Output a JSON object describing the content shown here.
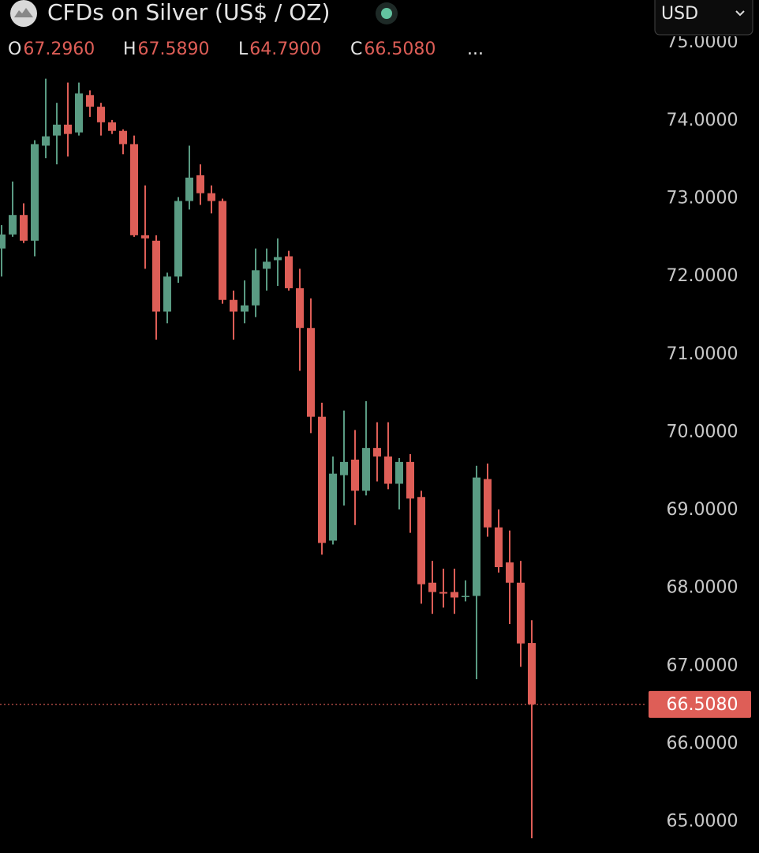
{
  "chart_data": {
    "type": "candlestick",
    "title": "CFDs on Silver (US$ / OZ)",
    "currency": "USD",
    "legend_keys": [
      "O",
      "H",
      "L",
      "C"
    ],
    "legend_values": [
      "67.2960",
      "67.5890",
      "64.7900",
      "66.5080"
    ],
    "more": "...",
    "up_color": "#5a9b83",
    "down_color": "#de5e57",
    "open": [
      72.36,
      72.54,
      72.79,
      72.46,
      73.68,
      73.81,
      73.95,
      73.85,
      74.33,
      74.18,
      73.98,
      73.87,
      73.7,
      72.53,
      72.46,
      71.55,
      72.0,
      72.97,
      73.3,
      73.07,
      72.97,
      71.7,
      71.55,
      71.63,
      72.1,
      72.21,
      72.26,
      71.85,
      71.34,
      70.2,
      68.61,
      69.45,
      69.65,
      69.25,
      69.8,
      69.69,
      69.34,
      69.62,
      69.17,
      68.07,
      67.95,
      67.95,
      67.9,
      67.9,
      69.4,
      68.78,
      68.33,
      68.07,
      67.296
    ],
    "high": [
      72.66,
      73.22,
      72.94,
      73.75,
      74.54,
      74.23,
      74.49,
      74.49,
      74.39,
      74.23,
      74.01,
      73.89,
      73.81,
      73.17,
      72.53,
      72.05,
      73.02,
      73.68,
      73.44,
      73.17,
      73.0,
      71.82,
      71.95,
      72.36,
      72.36,
      72.49,
      72.33,
      72.1,
      71.72,
      70.38,
      69.69,
      70.28,
      70.03,
      70.4,
      70.13,
      70.13,
      69.67,
      69.72,
      69.25,
      68.35,
      68.25,
      68.25,
      68.1,
      69.57,
      69.6,
      69.01,
      68.74,
      68.35,
      67.589
    ],
    "low": [
      72.0,
      72.51,
      72.43,
      72.26,
      73.52,
      73.44,
      73.54,
      73.81,
      74.05,
      73.81,
      73.83,
      73.57,
      72.51,
      72.1,
      71.19,
      71.4,
      71.92,
      72.86,
      72.92,
      72.81,
      71.65,
      71.19,
      71.4,
      71.48,
      71.82,
      71.88,
      71.82,
      70.79,
      69.99,
      68.43,
      68.56,
      69.06,
      68.81,
      69.19,
      69.37,
      69.27,
      69.01,
      68.71,
      67.8,
      67.67,
      67.75,
      67.67,
      67.83,
      66.83,
      68.66,
      68.2,
      67.54,
      66.99,
      64.79
    ],
    "close": [
      72.54,
      72.79,
      72.46,
      73.7,
      73.8,
      73.95,
      73.83,
      74.35,
      74.18,
      73.98,
      73.87,
      73.7,
      72.53,
      72.49,
      71.55,
      72.0,
      72.97,
      73.27,
      73.07,
      72.97,
      71.7,
      71.55,
      71.63,
      72.08,
      72.19,
      72.25,
      71.85,
      71.34,
      70.2,
      68.58,
      69.47,
      69.62,
      69.25,
      69.8,
      69.69,
      69.34,
      69.62,
      69.15,
      68.05,
      67.95,
      67.93,
      67.88,
      67.9,
      69.42,
      68.78,
      68.27,
      68.07,
      67.29,
      66.508
    ],
    "ylim": [
      64.6,
      75.55
    ],
    "yticks": [
      {
        "value": 65,
        "label": "65.0000"
      },
      {
        "value": 66,
        "label": "66.0000"
      },
      {
        "value": 67,
        "label": "67.0000"
      },
      {
        "value": 68,
        "label": "68.0000"
      },
      {
        "value": 69,
        "label": "69.0000"
      },
      {
        "value": 70,
        "label": "70.0000"
      },
      {
        "value": 71,
        "label": "71.0000"
      },
      {
        "value": 72,
        "label": "72.0000"
      },
      {
        "value": 73,
        "label": "73.0000"
      },
      {
        "value": 74,
        "label": "74.0000"
      },
      {
        "value": 75,
        "label": "75.0000"
      }
    ]
  }
}
